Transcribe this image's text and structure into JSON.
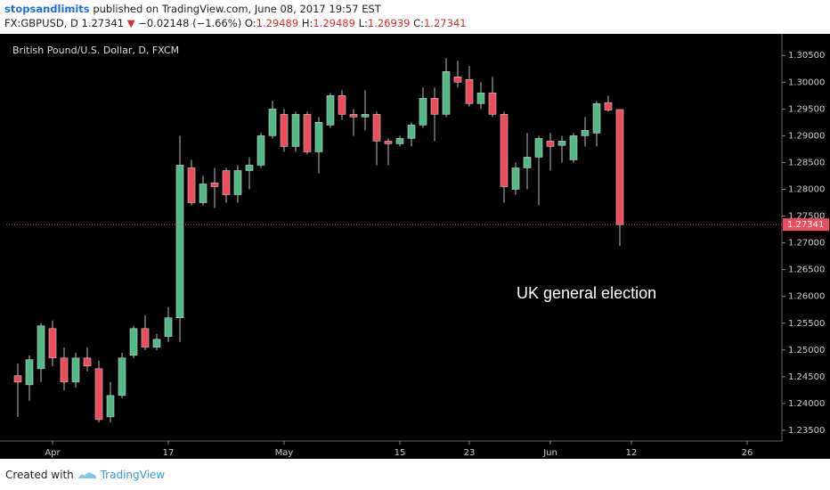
{
  "header": {
    "author": "stopsandlimits",
    "published": "published on TradingView.com, June 08, 2017 19:57 EST",
    "symbol": "FX:GBPUSD, D",
    "last": "1.27341",
    "arrow": "▼",
    "change": "−0.02148 (−1.66%)",
    "ohlc": [
      {
        "key": "O:",
        "value": "1.29489"
      },
      {
        "key": "H:",
        "value": "1.29489"
      },
      {
        "key": "L:",
        "value": "1.26939"
      },
      {
        "key": "C:",
        "value": "1.27341"
      }
    ]
  },
  "footer": {
    "created": "Created with",
    "brand": "TradingView"
  },
  "chart_data": {
    "type": "candlestick",
    "title": "British Pound/U.S. Dollar, D, FXCM",
    "annotation": "UK general election",
    "up_color": "#53b987",
    "down_color": "#eb4d5c",
    "x": [
      0,
      1,
      2,
      3,
      4,
      5,
      6,
      7,
      8,
      9,
      10,
      11,
      12,
      13,
      14,
      15,
      16,
      17,
      18,
      19,
      20,
      21,
      22,
      23,
      24,
      25,
      26,
      27,
      28,
      29,
      30,
      31,
      32,
      33,
      34,
      35,
      36,
      37,
      38,
      39,
      40,
      41,
      42,
      43,
      44,
      45,
      46,
      47,
      48,
      49,
      50,
      51,
      52
    ],
    "open": [
      1.2452,
      1.2435,
      1.2465,
      1.254,
      1.2485,
      1.244,
      1.2485,
      1.2465,
      1.2375,
      1.2415,
      1.249,
      1.254,
      1.2505,
      1.2525,
      1.256,
      1.284,
      1.2775,
      1.2812,
      1.2835,
      1.279,
      1.2835,
      1.2845,
      1.29,
      1.294,
      1.288,
      1.294,
      1.287,
      1.292,
      1.2975,
      1.294,
      1.2935,
      1.294,
      1.289,
      1.2885,
      1.2895,
      1.292,
      1.297,
      1.294,
      1.301,
      1.3005,
      1.296,
      1.298,
      1.294,
      1.28,
      1.284,
      1.286,
      1.289,
      1.2882,
      1.2855,
      1.29,
      1.2905,
      1.2962,
      1.29489
    ],
    "high": [
      1.2475,
      1.249,
      1.255,
      1.2555,
      1.2505,
      1.2495,
      1.2505,
      1.248,
      1.244,
      1.2495,
      1.2545,
      1.2565,
      1.253,
      1.258,
      1.29,
      1.2855,
      1.2825,
      1.284,
      1.284,
      1.2845,
      1.286,
      1.2905,
      1.2965,
      1.295,
      1.2945,
      1.2945,
      1.2935,
      1.298,
      1.2985,
      1.295,
      1.2985,
      1.2945,
      1.2895,
      1.29,
      1.2925,
      1.299,
      1.299,
      1.3045,
      1.304,
      1.303,
      1.3,
      1.301,
      1.2945,
      1.285,
      1.2905,
      1.29,
      1.2905,
      1.29,
      1.2905,
      1.2935,
      1.2965,
      1.2975,
      1.29489
    ],
    "low": [
      1.2375,
      1.2405,
      1.244,
      1.247,
      1.2425,
      1.243,
      1.246,
      1.2365,
      1.2365,
      1.241,
      1.2485,
      1.25,
      1.25,
      1.2515,
      1.2515,
      1.277,
      1.277,
      1.2765,
      1.2775,
      1.2775,
      1.28,
      1.284,
      1.2895,
      1.287,
      1.287,
      1.2865,
      1.283,
      1.2915,
      1.293,
      1.29,
      1.291,
      1.2845,
      1.2845,
      1.288,
      1.288,
      1.2915,
      1.289,
      1.2935,
      1.299,
      1.2955,
      1.295,
      1.2935,
      1.2775,
      1.279,
      1.28,
      1.277,
      1.2835,
      1.285,
      1.285,
      1.288,
      1.288,
      1.2945,
      1.26939
    ],
    "close": [
      1.244,
      1.2482,
      1.2545,
      1.2485,
      1.244,
      1.2485,
      1.247,
      1.237,
      1.2415,
      1.2485,
      1.254,
      1.2505,
      1.252,
      1.256,
      1.2845,
      1.2775,
      1.281,
      1.2805,
      1.279,
      1.2835,
      1.2845,
      1.29,
      1.295,
      1.288,
      1.294,
      1.287,
      1.2925,
      1.2975,
      1.294,
      1.2935,
      1.294,
      1.289,
      1.2885,
      1.2895,
      1.292,
      1.297,
      1.294,
      1.302,
      1.3,
      1.296,
      1.298,
      1.294,
      1.2805,
      1.284,
      1.286,
      1.2895,
      1.288,
      1.289,
      1.29,
      1.291,
      1.296,
      1.2948,
      1.27341
    ],
    "last_price": 1.27341,
    "xlim": [
      -1,
      66
    ],
    "xticks": [
      {
        "value": 3,
        "label": "Apr"
      },
      {
        "value": 13,
        "label": "17"
      },
      {
        "value": 23,
        "label": "May"
      },
      {
        "value": 33,
        "label": "15"
      },
      {
        "value": 39,
        "label": "23"
      },
      {
        "value": 46,
        "label": "Jun"
      },
      {
        "value": 53,
        "label": "12"
      },
      {
        "value": 63,
        "label": "26"
      }
    ],
    "ylim": [
      1.233,
      1.3087
    ],
    "yticks": [
      {
        "value": 1.235,
        "label": "1.23500"
      },
      {
        "value": 1.24,
        "label": "1.24000"
      },
      {
        "value": 1.245,
        "label": "1.24500"
      },
      {
        "value": 1.25,
        "label": "1.25000"
      },
      {
        "value": 1.255,
        "label": "1.25500"
      },
      {
        "value": 1.26,
        "label": "1.26000"
      },
      {
        "value": 1.265,
        "label": "1.26500"
      },
      {
        "value": 1.27,
        "label": "1.27000"
      },
      {
        "value": 1.275,
        "label": "1.27500"
      },
      {
        "value": 1.28,
        "label": "1.28000"
      },
      {
        "value": 1.285,
        "label": "1.28500"
      },
      {
        "value": 1.29,
        "label": "1.29000"
      },
      {
        "value": 1.295,
        "label": "1.29500"
      },
      {
        "value": 1.3,
        "label": "1.30000"
      },
      {
        "value": 1.305,
        "label": "1.30500"
      }
    ],
    "grid": false
  }
}
